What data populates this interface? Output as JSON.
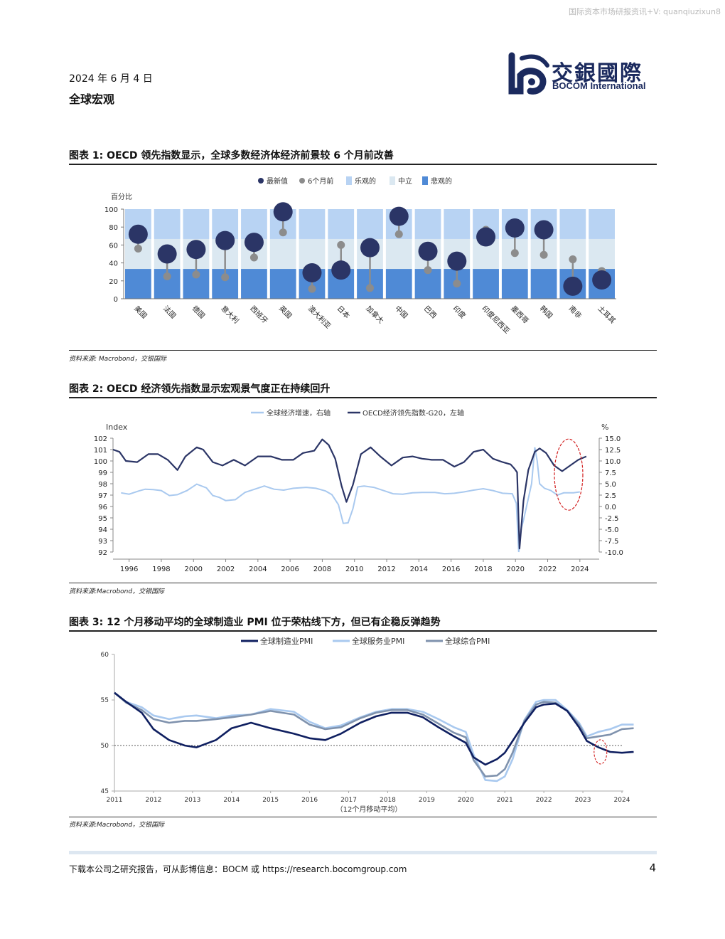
{
  "watermark": "国际资本市场研报资讯+V: quanqiuzixun8",
  "header": {
    "date": "2024 年 6 月 4 日",
    "subject": "全球宏观",
    "logo_cn": "交銀國際",
    "logo_en": "BOCOM International"
  },
  "figures": [
    {
      "title": "图表 1: OECD 领先指数显示，全球多数经济体经济前景较 6 个月前改善",
      "source": "资料来源: Macrobond，交银国际"
    },
    {
      "title": "图表 2: OECD 经济领先指数显示宏观景气度正在持续回升",
      "source": "资料来源:Macrobond，交银国际"
    },
    {
      "title": "图表 3: 12 个月移动平均的全球制造业 PMI 位于荣枯线下方，但已有企稳反弹趋势",
      "source": "资料来源:Macrobond，交银国际"
    }
  ],
  "footer": {
    "text": "下载本公司之研究报告，可从彭博信息：BOCM 或 https://research.bocomgroup.com",
    "page": "4"
  },
  "colors": {
    "navy": "#2b3566",
    "grey": "#8c8c8c",
    "optimistic": "#b8d3f3",
    "neutral": "#dbe8f1",
    "pessimistic": "#4f8ad6",
    "light_blue": "#a9c9ef",
    "pmi_mfg": "#0f1f60",
    "pmi_svc": "#a9c9ef",
    "pmi_comp": "#7f92ad",
    "highlight": "#d21e1e"
  },
  "chart_data": [
    {
      "type": "scatter",
      "legend": [
        "最新值",
        "6个月前",
        "乐观的",
        "中立",
        "悲观的"
      ],
      "ylabel": "百分比",
      "ylim": [
        0,
        100
      ],
      "yticks": [
        0,
        20,
        40,
        60,
        80,
        100
      ],
      "zones": {
        "pessimistic": [
          0,
          33.3
        ],
        "neutral": [
          33.3,
          66.7
        ],
        "optimistic": [
          66.7,
          100
        ]
      },
      "categories": [
        "美国",
        "法国",
        "德国",
        "意大利",
        "西班牙",
        "英国",
        "澳大利亚",
        "日本",
        "加拿大",
        "中国",
        "巴西",
        "印度",
        "印度尼西亚",
        "墨西哥",
        "韩国",
        "南非",
        "土耳其"
      ],
      "series": [
        {
          "name": "最新值",
          "values": [
            72,
            50,
            55,
            65,
            63,
            97,
            29,
            32,
            57,
            92,
            53,
            42,
            69,
            79,
            77,
            14,
            21
          ]
        },
        {
          "name": "6个月前",
          "values": [
            56,
            25,
            27,
            24,
            46,
            74,
            11,
            60,
            12,
            72,
            32,
            17,
            77,
            51,
            49,
            44,
            31
          ]
        }
      ]
    },
    {
      "type": "line",
      "legend": [
        "全球经济增速，右轴",
        "OECD经济领先指数-G20，左轴"
      ],
      "ylabel_left": "Index",
      "ylabel_right": "%",
      "ylim_left": [
        92,
        102
      ],
      "ylim_right": [
        -10,
        15
      ],
      "yticks_left": [
        "92",
        "93",
        "94",
        "95",
        "96",
        "97",
        "98",
        "99",
        "100",
        "101",
        "102"
      ],
      "yticks_right": [
        "-10.0",
        "-7.5",
        "-5.0",
        "-2.5",
        "0.0",
        "2.5",
        "5.0",
        "7.5",
        "10.0",
        "12.5",
        "15.0"
      ],
      "xticks": [
        "1996",
        "1998",
        "2000",
        "2002",
        "2004",
        "2006",
        "2008",
        "2010",
        "2012",
        "2014",
        "2016",
        "2018",
        "2020",
        "2022",
        "2024"
      ],
      "series": [
        {
          "name": "OECD经济领先指数-G20，左轴",
          "axis": "left",
          "x": [
            1995.0,
            1995.4,
            1995.8,
            1996.5,
            1997.2,
            1997.8,
            1998.4,
            1999.0,
            1999.5,
            2000.2,
            2000.6,
            2001.2,
            2001.8,
            2002.5,
            2003.2,
            2004.0,
            2004.8,
            2005.5,
            2006.2,
            2006.8,
            2007.5,
            2008.0,
            2008.4,
            2008.8,
            2009.2,
            2009.5,
            2009.9,
            2010.4,
            2011.0,
            2011.6,
            2012.3,
            2013.0,
            2013.6,
            2014.2,
            2014.8,
            2015.5,
            2016.2,
            2016.8,
            2017.4,
            2018.0,
            2018.6,
            2019.2,
            2019.7,
            2019.95,
            2020.1,
            2020.25,
            2020.5,
            2020.8,
            2021.2,
            2021.5,
            2021.9,
            2022.4,
            2022.9,
            2023.4,
            2023.9,
            2024.4
          ],
          "values": [
            101.0,
            100.8,
            100.0,
            99.9,
            100.6,
            100.6,
            100.1,
            99.2,
            100.4,
            101.2,
            101.0,
            99.9,
            99.6,
            100.1,
            99.6,
            100.4,
            100.4,
            100.1,
            100.1,
            100.7,
            100.9,
            101.9,
            101.4,
            100.2,
            97.8,
            96.4,
            97.9,
            100.6,
            101.2,
            100.4,
            99.6,
            100.3,
            100.4,
            100.2,
            100.1,
            100.1,
            99.5,
            99.9,
            100.8,
            101.0,
            100.2,
            99.9,
            99.7,
            99.3,
            99.0,
            92.3,
            96.5,
            99.2,
            100.8,
            101.1,
            100.7,
            99.6,
            99.1,
            99.6,
            100.1,
            100.4
          ]
        },
        {
          "name": "全球经济增速，右轴",
          "axis": "right",
          "x": [
            1995.5,
            1996.0,
            1996.6,
            1997.0,
            1997.5,
            1998.0,
            1998.5,
            1999.0,
            1999.6,
            2000.2,
            2000.8,
            2001.2,
            2001.6,
            2002.0,
            2002.6,
            2003.2,
            2003.8,
            2004.4,
            2005.0,
            2005.6,
            2006.2,
            2007.0,
            2007.6,
            2008.2,
            2008.6,
            2009.0,
            2009.3,
            2009.6,
            2009.9,
            2010.2,
            2010.6,
            2011.2,
            2011.8,
            2012.4,
            2013.0,
            2013.6,
            2014.2,
            2015.0,
            2015.6,
            2016.2,
            2016.8,
            2017.4,
            2018.0,
            2018.6,
            2019.2,
            2019.8,
            2020.05,
            2020.2,
            2020.35,
            2020.5,
            2020.75,
            2021.0,
            2021.2,
            2021.35,
            2021.5,
            2021.8,
            2022.2,
            2022.6,
            2023.0,
            2023.6,
            2024.0
          ],
          "values": [
            3.0,
            2.7,
            3.4,
            3.8,
            3.7,
            3.5,
            2.4,
            2.6,
            3.5,
            4.9,
            4.1,
            2.4,
            2.0,
            1.3,
            1.5,
            3.1,
            3.8,
            4.5,
            3.8,
            3.6,
            4.0,
            4.2,
            4.0,
            3.4,
            2.6,
            0.4,
            -3.7,
            -3.6,
            -0.5,
            4.3,
            4.5,
            4.2,
            3.5,
            2.8,
            2.7,
            3.0,
            3.1,
            3.1,
            2.8,
            2.9,
            3.2,
            3.6,
            3.9,
            3.5,
            2.9,
            2.8,
            0.7,
            -10.0,
            -5.0,
            -3.0,
            1.0,
            5.0,
            13.0,
            10.0,
            5.0,
            4.0,
            3.5,
            2.5,
            3.0,
            3.0,
            3.2
          ]
        }
      ]
    },
    {
      "type": "line",
      "legend": [
        "全球制造业PMI",
        "全球服务业PMI",
        "全球综合PMI"
      ],
      "xlabel": "（12个月移动平均）",
      "ylim": [
        45,
        60
      ],
      "yticks": [
        "45",
        "50",
        "55",
        "60"
      ],
      "xticks": [
        "2011",
        "2012",
        "2013",
        "2014",
        "2015",
        "2016",
        "2017",
        "2018",
        "2019",
        "2020",
        "2021",
        "2022",
        "2023",
        "2024"
      ],
      "reference_line": 50,
      "series": [
        {
          "name": "全球制造业PMI",
          "x": [
            2011.0,
            2011.3,
            2011.7,
            2012.0,
            2012.4,
            2012.8,
            2013.1,
            2013.6,
            2014.0,
            2014.5,
            2015.0,
            2015.6,
            2016.0,
            2016.4,
            2016.8,
            2017.3,
            2017.7,
            2018.1,
            2018.5,
            2018.9,
            2019.3,
            2019.7,
            2020.0,
            2020.2,
            2020.5,
            2020.8,
            2021.0,
            2021.2,
            2021.5,
            2021.8,
            2022.0,
            2022.3,
            2022.6,
            2022.9,
            2023.1,
            2023.4,
            2023.7,
            2024.0,
            2024.3
          ],
          "values": [
            55.8,
            54.8,
            53.6,
            51.8,
            50.6,
            50.0,
            49.8,
            50.6,
            51.9,
            52.5,
            51.9,
            51.3,
            50.8,
            50.6,
            51.3,
            52.5,
            53.2,
            53.6,
            53.6,
            53.1,
            52.0,
            51.0,
            50.3,
            48.7,
            47.9,
            48.5,
            49.2,
            50.5,
            52.5,
            54.2,
            54.5,
            54.6,
            53.8,
            52.0,
            50.5,
            49.8,
            49.3,
            49.2,
            49.3
          ]
        },
        {
          "name": "全球服务业PMI",
          "x": [
            2011.0,
            2011.3,
            2011.7,
            2012.0,
            2012.4,
            2012.8,
            2013.1,
            2013.6,
            2014.0,
            2014.5,
            2015.0,
            2015.6,
            2016.0,
            2016.4,
            2016.8,
            2017.3,
            2017.7,
            2018.1,
            2018.5,
            2018.9,
            2019.3,
            2019.7,
            2020.0,
            2020.2,
            2020.5,
            2020.8,
            2021.0,
            2021.2,
            2021.5,
            2021.8,
            2022.0,
            2022.3,
            2022.6,
            2022.9,
            2023.1,
            2023.4,
            2023.7,
            2024.0,
            2024.3
          ],
          "values": [
            55.8,
            54.8,
            54.2,
            53.3,
            52.9,
            53.2,
            53.3,
            53.0,
            53.3,
            53.4,
            54.0,
            53.7,
            52.6,
            51.9,
            52.2,
            53.1,
            53.7,
            54.0,
            54.0,
            53.7,
            52.9,
            52.0,
            51.5,
            49.0,
            46.2,
            46.1,
            46.6,
            48.5,
            52.8,
            54.8,
            55.0,
            55.0,
            53.9,
            52.5,
            51.0,
            51.5,
            51.8,
            52.3,
            52.3
          ]
        },
        {
          "name": "全球综合PMI",
          "x": [
            2011.0,
            2011.3,
            2011.7,
            2012.0,
            2012.4,
            2012.8,
            2013.1,
            2013.6,
            2014.0,
            2014.5,
            2015.0,
            2015.6,
            2016.0,
            2016.4,
            2016.8,
            2017.3,
            2017.7,
            2018.1,
            2018.5,
            2018.9,
            2019.3,
            2019.7,
            2020.0,
            2020.2,
            2020.5,
            2020.8,
            2021.0,
            2021.2,
            2021.5,
            2021.8,
            2022.0,
            2022.3,
            2022.6,
            2022.9,
            2023.1,
            2023.4,
            2023.7,
            2024.0,
            2024.3
          ],
          "values": [
            55.8,
            54.7,
            53.9,
            52.9,
            52.5,
            52.7,
            52.7,
            52.9,
            53.1,
            53.4,
            53.8,
            53.4,
            52.3,
            51.8,
            52.0,
            53.0,
            53.6,
            53.9,
            53.9,
            53.4,
            52.4,
            51.4,
            50.9,
            48.4,
            46.6,
            46.7,
            47.4,
            49.2,
            52.7,
            54.5,
            54.8,
            54.7,
            53.8,
            52.3,
            50.8,
            51.0,
            51.2,
            51.8,
            51.9
          ]
        }
      ]
    }
  ]
}
